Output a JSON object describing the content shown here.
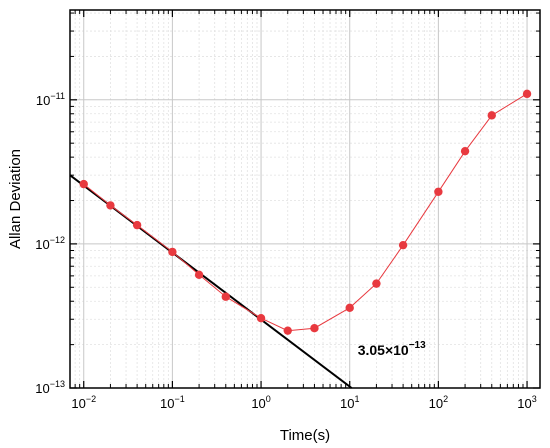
{
  "chart_data": {
    "type": "line",
    "xlabel": "Time(s)",
    "ylabel": "Allan Deviation",
    "xscale": "log",
    "yscale": "log",
    "xlim": [
      0.007,
      1400
    ],
    "ylim": [
      1e-13,
      4.2e-11
    ],
    "grid": true,
    "x_ticks": [
      {
        "value": 0.01,
        "base": "10",
        "exp": "−2"
      },
      {
        "value": 0.1,
        "base": "10",
        "exp": "−1"
      },
      {
        "value": 1,
        "base": "10",
        "exp": "0"
      },
      {
        "value": 10,
        "base": "10",
        "exp": "1"
      },
      {
        "value": 100,
        "base": "10",
        "exp": "2"
      },
      {
        "value": 1000,
        "base": "10",
        "exp": "3"
      }
    ],
    "y_ticks": [
      {
        "value": 1e-13,
        "base": "10",
        "exp": "−13"
      },
      {
        "value": 1e-12,
        "base": "10",
        "exp": "−12"
      },
      {
        "value": 1e-11,
        "base": "10",
        "exp": "−11"
      }
    ],
    "series": [
      {
        "color": "#e8393f",
        "marker": "circle",
        "x": [
          0.01,
          0.02,
          0.04,
          0.1,
          0.2,
          0.4,
          1,
          2,
          4,
          10,
          20,
          40,
          100,
          200,
          400,
          1000
        ],
        "y": [
          2.6e-12,
          1.85e-12,
          1.35e-12,
          8.8e-13,
          6.1e-13,
          4.3e-13,
          3.05e-13,
          2.5e-13,
          2.6e-13,
          3.6e-13,
          5.3e-13,
          9.8e-13,
          2.3e-12,
          4.4e-12,
          7.8e-12,
          1.1e-11
        ]
      }
    ],
    "fit_line": {
      "color": "#000000",
      "x": [
        0.007,
        10.5
      ],
      "y": [
        3e-12,
        1e-13
      ]
    },
    "annotation": {
      "prefix": "3.05×10",
      "exp": "−13",
      "x": 10,
      "y": 1.7e-13
    }
  }
}
